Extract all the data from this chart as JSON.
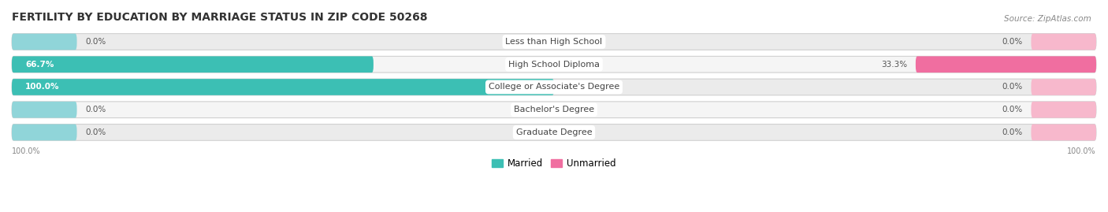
{
  "title": "FERTILITY BY EDUCATION BY MARRIAGE STATUS IN ZIP CODE 50268",
  "source": "Source: ZipAtlas.com",
  "categories": [
    "Less than High School",
    "High School Diploma",
    "College or Associate's Degree",
    "Bachelor's Degree",
    "Graduate Degree"
  ],
  "married_values": [
    0.0,
    66.7,
    100.0,
    0.0,
    0.0
  ],
  "unmarried_values": [
    0.0,
    33.3,
    0.0,
    0.0,
    0.0
  ],
  "married_color": "#3CBFB4",
  "unmarried_color": "#F06EA0",
  "married_light": "#90D5D9",
  "unmarried_light": "#F7B8CC",
  "bar_bg_color": "#EBEBEB",
  "bar_bg_color_alt": "#F5F5F5",
  "title_fontsize": 10,
  "source_fontsize": 7.5,
  "value_fontsize": 7.5,
  "label_fontsize": 8,
  "legend_fontsize": 8.5,
  "max_val": 100.0,
  "bar_height": 0.72,
  "default_bar_pct": 12.0,
  "fig_width": 14.06,
  "fig_height": 2.69
}
